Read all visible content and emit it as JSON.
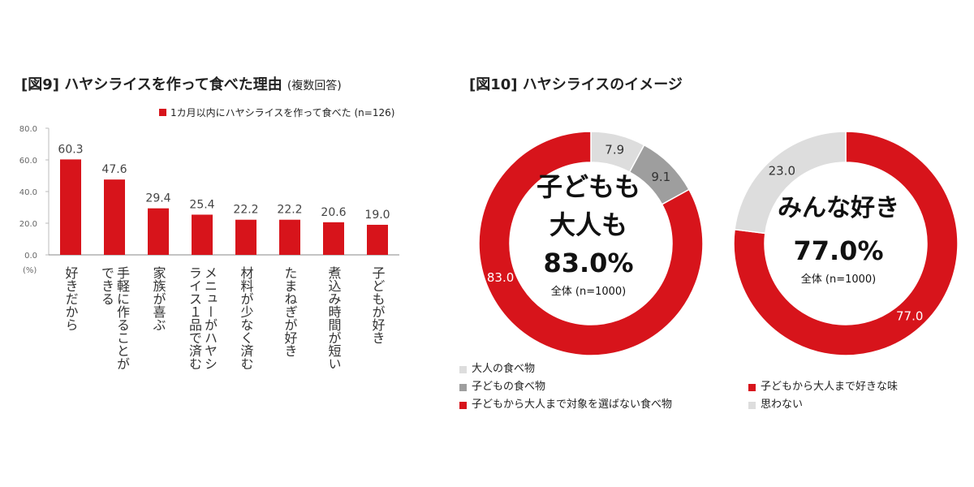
{
  "fig9": {
    "title": "[図9] ハヤシライスを作って食べた理由",
    "subtitle": "(複数回答)",
    "legend_label": "1カ月以内にハヤシライスを作って食べた (n=126)"
  },
  "fig10": {
    "title": "[図10] ハヤシライスのイメージ",
    "left_center": {
      "line1": "子どもも",
      "line2": "大人も",
      "pct": "83.0%",
      "total": "全体 (n=1000)"
    },
    "right_center": {
      "line1": "みんな好き",
      "pct": "77.0%",
      "total": "全体 (n=1000)"
    },
    "legend_left": [
      "大人の食べ物",
      "子どもの食べ物",
      "子どもから大人まで対象を選ばない食べ物"
    ],
    "legend_right": [
      "子どもから大人まで好きな味",
      "思わない"
    ]
  },
  "colors": {
    "red": "#d7141b",
    "dark_gray": "#9e9e9e",
    "light_gray": "#dddddd"
  },
  "chart_data": [
    {
      "type": "bar",
      "title": "[図9] ハヤシライスを作って食べた理由",
      "ylabel": "(%)",
      "ylim": [
        0,
        80
      ],
      "yticks": [
        "80.0",
        "60.0",
        "40.0",
        "20.0",
        "0.0"
      ],
      "categories": [
        "好きだから",
        "手軽に作ることができる",
        "家族が喜ぶ",
        "メニューがハヤシライス１品で済む",
        "材料が少なく済む",
        "たまねぎが好き",
        "煮込み時間が短い",
        "子どもが好き"
      ],
      "category_lines": [
        [
          "好きだから"
        ],
        [
          "手軽に作ることが",
          "できる"
        ],
        [
          "家族が喜ぶ"
        ],
        [
          "メニューがハヤシ",
          "ライス１品で済む"
        ],
        [
          "材料が少なく済む"
        ],
        [
          "たまねぎが好き"
        ],
        [
          "煮込み時間が短い"
        ],
        [
          "子どもが好き"
        ]
      ],
      "values": [
        60.3,
        47.6,
        29.4,
        25.4,
        22.2,
        22.2,
        20.6,
        19.0
      ],
      "value_labels": [
        "60.3",
        "47.6",
        "29.4",
        "25.4",
        "22.2",
        "22.2",
        "20.6",
        "19.0"
      ],
      "series": [
        {
          "name": "1カ月以内にハヤシライスを作って食べた (n=126)",
          "values": [
            60.3,
            47.6,
            29.4,
            25.4,
            22.2,
            22.2,
            20.6,
            19.0
          ]
        }
      ]
    },
    {
      "type": "pie",
      "title": "[図10] ハヤシライスのイメージ",
      "labels": [
        "大人の食べ物",
        "子どもの食べ物",
        "子どもから大人まで対象を選ばない食べ物"
      ],
      "values": [
        7.9,
        9.1,
        83.0
      ],
      "value_labels": [
        "7.9",
        "9.1",
        "83.0"
      ],
      "colors": [
        "#dddddd",
        "#9e9e9e",
        "#d7141b"
      ]
    },
    {
      "type": "pie",
      "title": "[図10] ハヤシライスのイメージ",
      "labels": [
        "子どもから大人まで好きな味",
        "思わない"
      ],
      "values": [
        77.0,
        23.0
      ],
      "value_labels": [
        "77.0",
        "23.0"
      ],
      "colors": [
        "#d7141b",
        "#dddddd"
      ]
    }
  ]
}
